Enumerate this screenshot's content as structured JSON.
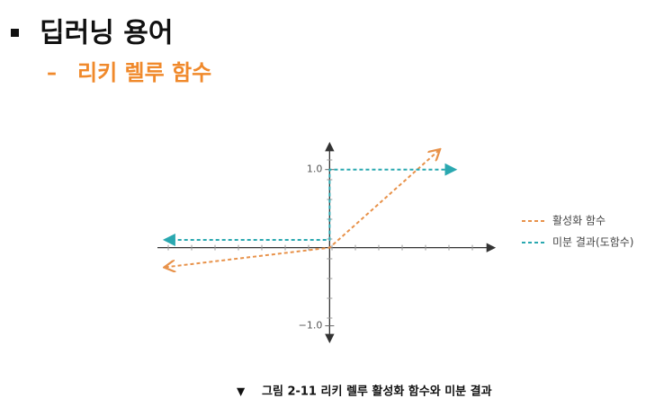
{
  "header": {
    "title": "딥러닝 용어",
    "subtitle": "리키 렐루 함수"
  },
  "chart_data": {
    "type": "line",
    "series": [
      {
        "name": "활성화 함수",
        "color": "#e8924a",
        "x": [
          -2.1,
          0,
          1.4
        ],
        "values": [
          -0.25,
          0,
          1.25
        ]
      },
      {
        "name": "미분 결과(도함수)",
        "color": "#2aa8b0",
        "x": [
          -2.1,
          0,
          0,
          1.6
        ],
        "values": [
          0.1,
          0.1,
          1,
          1
        ]
      }
    ],
    "xlim": [
      -2.2,
      2.1
    ],
    "ylim": [
      -1.2,
      1.33
    ],
    "yticks": [
      {
        "value": -1,
        "label": "−1.0"
      },
      {
        "value": 1,
        "label": "1.0"
      }
    ],
    "legend": "right"
  },
  "caption": "그림 2-11 리키 렐루 활성화 함수와 미분 결과"
}
